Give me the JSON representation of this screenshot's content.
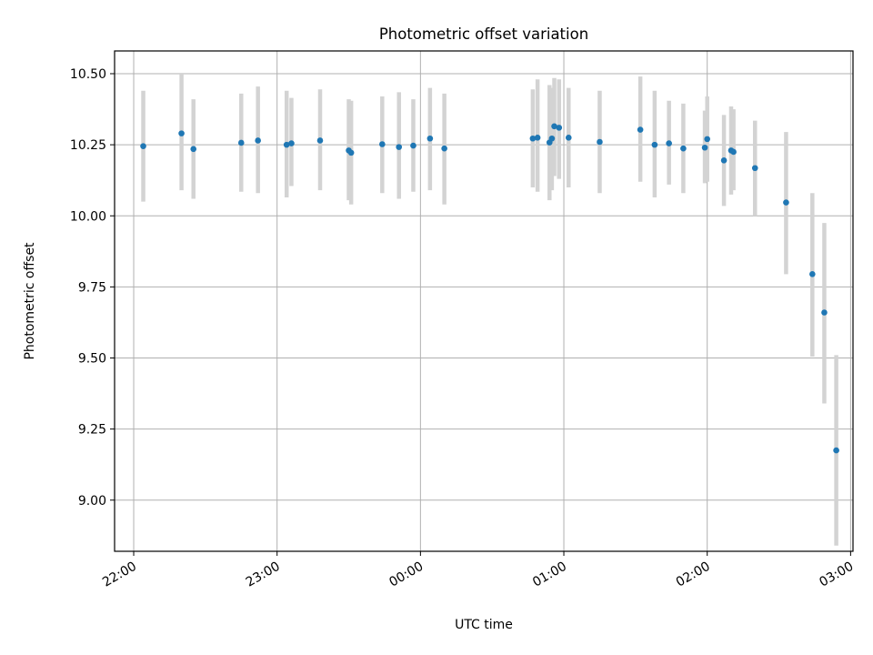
{
  "chart_data": {
    "type": "scatter",
    "title": "Photometric offset variation",
    "xlabel": "UTC time",
    "ylabel": "Photometric offset",
    "xlim": [
      "21:52",
      "03:01"
    ],
    "ylim": [
      8.82,
      10.58
    ],
    "grid": true,
    "xticks": [
      "22:00",
      "23:00",
      "00:00",
      "01:00",
      "02:00",
      "03:00"
    ],
    "yticks": [
      "9.00",
      "9.25",
      "9.50",
      "9.75",
      "10.00",
      "10.25",
      "10.50"
    ],
    "colors": {
      "point": "#1f77b4",
      "errorbar": "#d3d3d3",
      "grid": "#b0b0b0"
    },
    "series": [
      {
        "points": [
          {
            "x": "22:04",
            "y": 10.245,
            "lo": 10.05,
            "hi": 10.44
          },
          {
            "x": "22:20",
            "y": 10.29,
            "lo": 10.09,
            "hi": 10.5
          },
          {
            "x": "22:25",
            "y": 10.235,
            "lo": 10.06,
            "hi": 10.41
          },
          {
            "x": "22:45",
            "y": 10.257,
            "lo": 10.085,
            "hi": 10.43
          },
          {
            "x": "22:52",
            "y": 10.265,
            "lo": 10.08,
            "hi": 10.455
          },
          {
            "x": "23:04",
            "y": 10.25,
            "lo": 10.065,
            "hi": 10.44
          },
          {
            "x": "23:06",
            "y": 10.255,
            "lo": 10.105,
            "hi": 10.415
          },
          {
            "x": "23:18",
            "y": 10.265,
            "lo": 10.09,
            "hi": 10.445
          },
          {
            "x": "23:30",
            "y": 10.23,
            "lo": 10.055,
            "hi": 10.41
          },
          {
            "x": "23:31",
            "y": 10.222,
            "lo": 10.04,
            "hi": 10.405
          },
          {
            "x": "23:44",
            "y": 10.252,
            "lo": 10.08,
            "hi": 10.42
          },
          {
            "x": "23:51",
            "y": 10.242,
            "lo": 10.06,
            "hi": 10.435
          },
          {
            "x": "23:57",
            "y": 10.247,
            "lo": 10.085,
            "hi": 10.41
          },
          {
            "x": "00:04",
            "y": 10.272,
            "lo": 10.09,
            "hi": 10.45
          },
          {
            "x": "00:10",
            "y": 10.237,
            "lo": 10.04,
            "hi": 10.43
          },
          {
            "x": "00:47",
            "y": 10.272,
            "lo": 10.1,
            "hi": 10.445
          },
          {
            "x": "00:49",
            "y": 10.275,
            "lo": 10.085,
            "hi": 10.48
          },
          {
            "x": "00:54",
            "y": 10.258,
            "lo": 10.055,
            "hi": 10.46
          },
          {
            "x": "00:55",
            "y": 10.272,
            "lo": 10.09,
            "hi": 10.45
          },
          {
            "x": "00:56",
            "y": 10.315,
            "lo": 10.14,
            "hi": 10.485
          },
          {
            "x": "00:58",
            "y": 10.31,
            "lo": 10.13,
            "hi": 10.48
          },
          {
            "x": "01:02",
            "y": 10.275,
            "lo": 10.1,
            "hi": 10.45
          },
          {
            "x": "01:15",
            "y": 10.26,
            "lo": 10.08,
            "hi": 10.44
          },
          {
            "x": "01:32",
            "y": 10.303,
            "lo": 10.12,
            "hi": 10.49
          },
          {
            "x": "01:38",
            "y": 10.25,
            "lo": 10.065,
            "hi": 10.44
          },
          {
            "x": "01:44",
            "y": 10.255,
            "lo": 10.11,
            "hi": 10.405
          },
          {
            "x": "01:50",
            "y": 10.237,
            "lo": 10.08,
            "hi": 10.395
          },
          {
            "x": "01:59",
            "y": 10.24,
            "lo": 10.115,
            "hi": 10.37
          },
          {
            "x": "02:00",
            "y": 10.27,
            "lo": 10.12,
            "hi": 10.42
          },
          {
            "x": "02:07",
            "y": 10.195,
            "lo": 10.035,
            "hi": 10.355
          },
          {
            "x": "02:10",
            "y": 10.23,
            "lo": 10.075,
            "hi": 10.385
          },
          {
            "x": "02:11",
            "y": 10.225,
            "lo": 10.09,
            "hi": 10.375
          },
          {
            "x": "02:20",
            "y": 10.168,
            "lo": 10.0,
            "hi": 10.335
          },
          {
            "x": "02:33",
            "y": 10.047,
            "lo": 9.795,
            "hi": 10.295
          },
          {
            "x": "02:44",
            "y": 9.795,
            "lo": 9.505,
            "hi": 10.08
          },
          {
            "x": "02:49",
            "y": 9.66,
            "lo": 9.34,
            "hi": 9.975
          },
          {
            "x": "02:54",
            "y": 9.175,
            "lo": 8.84,
            "hi": 9.51
          }
        ]
      }
    ]
  }
}
